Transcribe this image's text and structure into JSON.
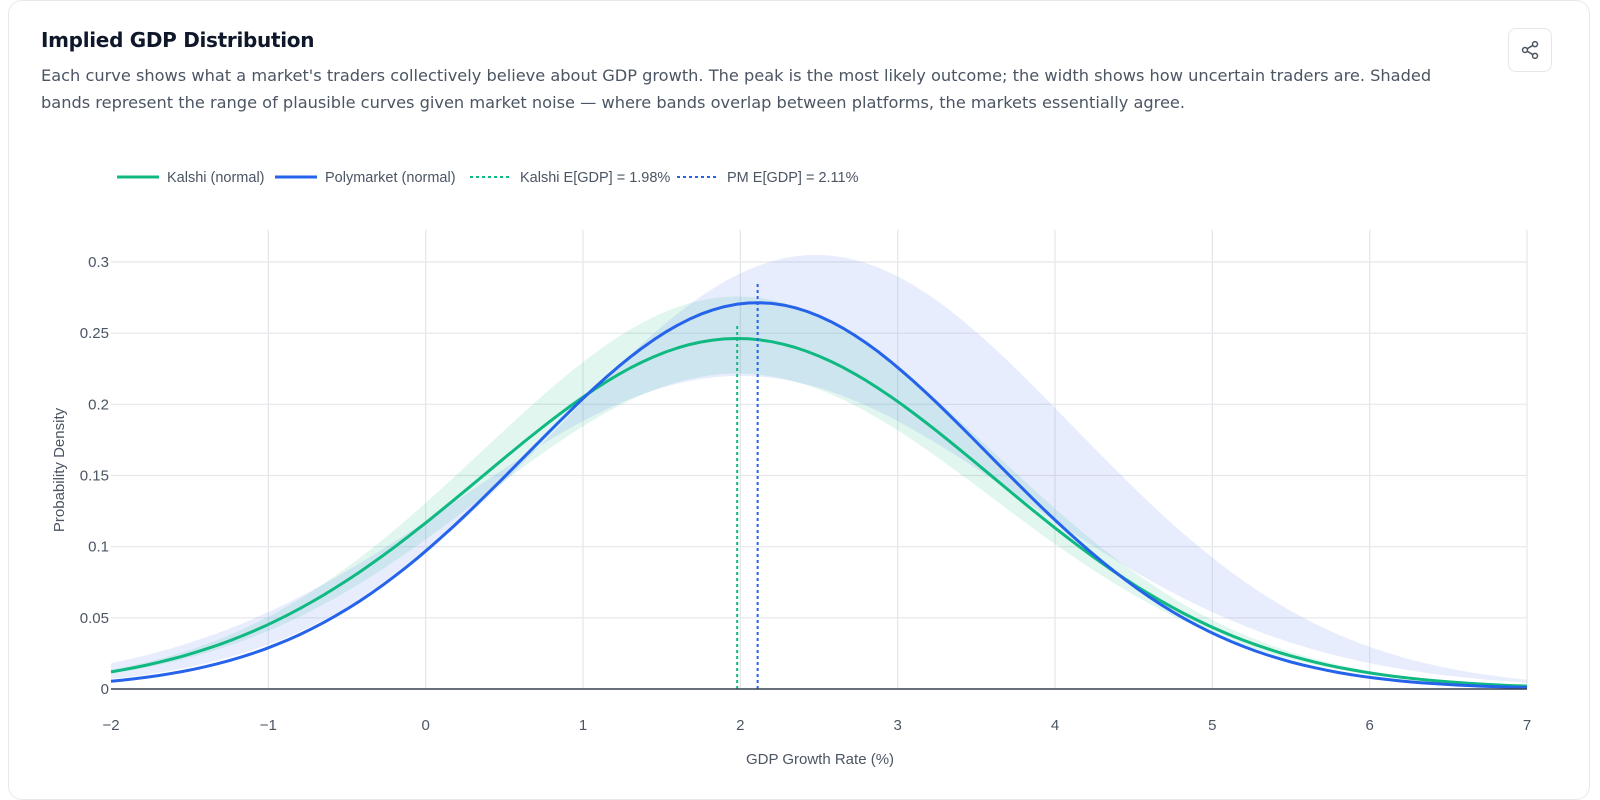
{
  "header": {
    "title": "Implied GDP Distribution",
    "description": "Each curve shows what a market's traders collectively believe about GDP growth. The peak is the most likely outcome; the width shows how uncertain traders are. Shaded bands represent the range of plausible curves given market noise — where bands overlap between platforms, the markets essentially agree.",
    "share_icon": "share-icon"
  },
  "colors": {
    "kalshi": "#10b981",
    "polymarket": "#2563eb",
    "kalshi_band": "rgba(16,185,129,0.13)",
    "polymarket_band": "rgba(99,132,241,0.15)",
    "grid": "#e5e7eb",
    "axis": "#374151",
    "tick_text": "#4b5563"
  },
  "chart_data": {
    "type": "line",
    "xlabel": "GDP Growth Rate (%)",
    "ylabel": "Probability Density",
    "xlim": [
      -2,
      7
    ],
    "ylim": [
      0,
      0.3
    ],
    "x_ticks": [
      -2,
      -1,
      0,
      1,
      2,
      3,
      4,
      5,
      6,
      7
    ],
    "x_tick_labels": [
      "−2",
      "−1",
      "0",
      "1",
      "2",
      "3",
      "4",
      "5",
      "6",
      "7"
    ],
    "y_ticks": [
      0,
      0.05,
      0.1,
      0.15,
      0.2,
      0.25,
      0.3
    ],
    "y_tick_labels": [
      "0",
      "0.05",
      "0.1",
      "0.15",
      "0.2",
      "0.25",
      "0.3"
    ],
    "legend_position": "top-left",
    "legend": [
      {
        "label": "Kalshi (normal)",
        "style": "solid",
        "series": "kalshi"
      },
      {
        "label": "Polymarket (normal)",
        "style": "solid",
        "series": "polymarket"
      },
      {
        "label": "Kalshi E[GDP] = 1.98%",
        "style": "dotted",
        "series": "kalshi"
      },
      {
        "label": "PM E[GDP] = 2.11%",
        "style": "dotted",
        "series": "polymarket"
      }
    ],
    "series": [
      {
        "name": "Kalshi (normal)",
        "key": "kalshi",
        "distribution": "normal",
        "mean": 1.98,
        "std": 1.62,
        "band_lower_scale": 0.9,
        "band_upper_scale": 1.12
      },
      {
        "name": "Polymarket (normal)",
        "key": "polymarket",
        "distribution": "normal",
        "mean": 2.11,
        "std": 1.47,
        "band_lower": {
          "mean": 2.0,
          "std": 1.79,
          "peak": 0.22
        },
        "band_upper": {
          "mean": 2.48,
          "std": 1.63,
          "peak": 0.305
        }
      }
    ],
    "markers": [
      {
        "label": "Kalshi E[GDP] = 1.98%",
        "x": 1.98,
        "y_top": 0.255,
        "series": "kalshi"
      },
      {
        "label": "PM E[GDP] = 2.11%",
        "x": 2.11,
        "y_top": 0.285,
        "series": "polymarket"
      }
    ]
  }
}
